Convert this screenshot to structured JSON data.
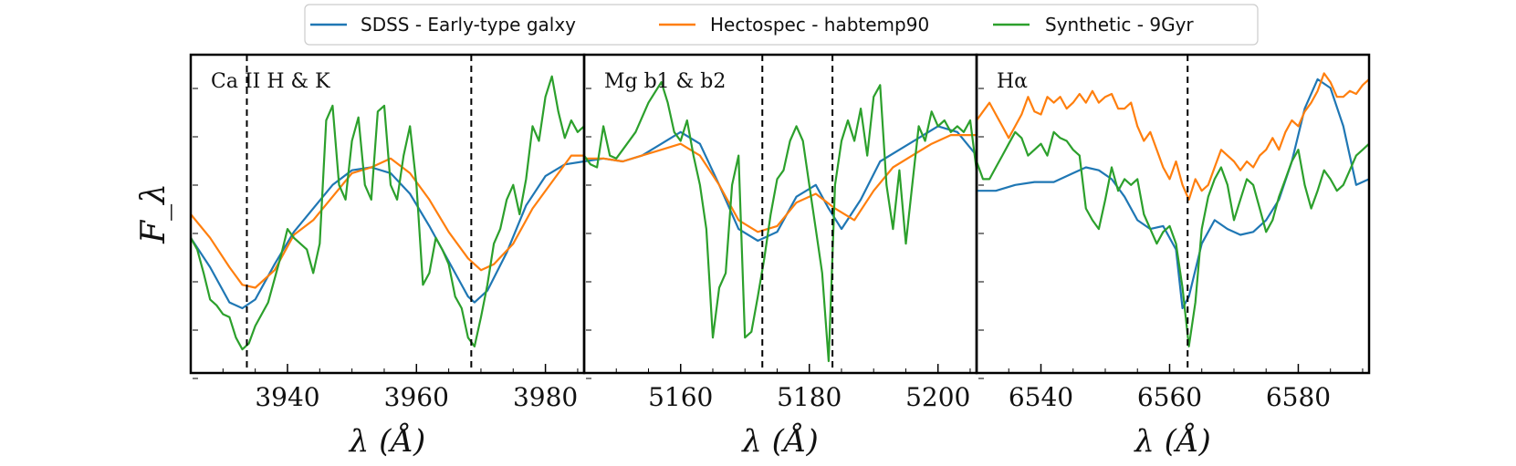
{
  "chart_data": {
    "type": "line",
    "ylabel": "F_λ",
    "xlabel": "λ (Å)",
    "legend": {
      "placement": "top-center",
      "entries": [
        {
          "name": "SDSS - Early-type galxy",
          "color": "#1f77b4"
        },
        {
          "name": "Hectospec - habtemp90",
          "color": "#ff7f0e"
        },
        {
          "name": "Synthetic - 9Gyr",
          "color": "#2ca02c"
        }
      ]
    },
    "panels": [
      {
        "label": "Ca II H & K",
        "xlim": [
          3925,
          3986
        ],
        "ylim": [
          0,
          1
        ],
        "xticks": [
          3940,
          3960,
          3980
        ],
        "xtick_labels": [
          "3940",
          "3960",
          "3980"
        ],
        "vlines": [
          3933.7,
          3968.5
        ],
        "series": [
          {
            "name": "SDSS - Early-type galxy",
            "x": [
              3925,
              3928,
              3931,
              3933,
              3935,
              3938,
              3941,
              3944,
              3947,
              3950,
              3953,
              3956,
              3959,
              3962,
              3965,
              3968,
              3969,
              3971,
              3974,
              3977,
              3980,
              3983,
              3986
            ],
            "y": [
              0.42,
              0.32,
              0.2,
              0.18,
              0.21,
              0.33,
              0.44,
              0.52,
              0.6,
              0.65,
              0.66,
              0.64,
              0.57,
              0.46,
              0.34,
              0.22,
              0.2,
              0.24,
              0.37,
              0.53,
              0.63,
              0.67,
              0.68
            ]
          },
          {
            "name": "Hectospec - habtemp90",
            "x": [
              3925,
              3928,
              3931,
              3933,
              3935,
              3938,
              3941,
              3944,
              3947,
              3950,
              3953,
              3956,
              3959,
              3962,
              3965,
              3968,
              3970,
              3972,
              3975,
              3978,
              3981,
              3984,
              3986
            ],
            "y": [
              0.5,
              0.42,
              0.32,
              0.26,
              0.25,
              0.31,
              0.43,
              0.48,
              0.56,
              0.64,
              0.66,
              0.69,
              0.64,
              0.55,
              0.44,
              0.35,
              0.31,
              0.33,
              0.4,
              0.52,
              0.61,
              0.7,
              0.7
            ]
          },
          {
            "name": "Synthetic - 9Gyr",
            "x": [
              3925,
              3926,
              3927,
              3928,
              3929,
              3930,
              3931,
              3932,
              3933,
              3934,
              3935,
              3937,
              3939,
              3940,
              3941,
              3942,
              3943,
              3944,
              3945,
              3946,
              3947,
              3948,
              3949,
              3950,
              3951,
              3952,
              3953,
              3954,
              3955,
              3956,
              3957,
              3958,
              3959,
              3960,
              3961,
              3962,
              3963,
              3964,
              3965,
              3966,
              3967,
              3968,
              3969,
              3970,
              3971,
              3972,
              3973,
              3974,
              3975,
              3976,
              3977,
              3978,
              3979,
              3980,
              3981,
              3982,
              3983,
              3984,
              3985,
              3986
            ],
            "y": [
              0.42,
              0.38,
              0.3,
              0.21,
              0.19,
              0.16,
              0.15,
              0.08,
              0.04,
              0.06,
              0.12,
              0.2,
              0.36,
              0.45,
              0.42,
              0.4,
              0.38,
              0.3,
              0.4,
              0.82,
              0.87,
              0.6,
              0.55,
              0.75,
              0.83,
              0.6,
              0.55,
              0.85,
              0.87,
              0.6,
              0.55,
              0.7,
              0.8,
              0.6,
              0.26,
              0.3,
              0.42,
              0.38,
              0.33,
              0.22,
              0.18,
              0.08,
              0.05,
              0.15,
              0.26,
              0.4,
              0.45,
              0.55,
              0.6,
              0.5,
              0.62,
              0.8,
              0.75,
              0.9,
              0.97,
              0.85,
              0.76,
              0.82,
              0.78,
              0.8
            ]
          }
        ]
      },
      {
        "label": "Mg b1 & b2",
        "xlim": [
          5145,
          5206
        ],
        "ylim": [
          0,
          1
        ],
        "xticks": [
          5160,
          5180,
          5200
        ],
        "xtick_labels": [
          "5160",
          "5180",
          "5200"
        ],
        "vlines": [
          5172.7,
          5183.6
        ],
        "series": [
          {
            "name": "SDSS - Early-type galxy",
            "x": [
              5145,
              5148,
              5151,
              5154,
              5157,
              5160,
              5163,
              5166,
              5169,
              5172,
              5175,
              5178,
              5181,
              5183,
              5185,
              5188,
              5191,
              5194,
              5197,
              5200,
              5203,
              5206
            ],
            "y": [
              0.68,
              0.69,
              0.68,
              0.7,
              0.74,
              0.78,
              0.74,
              0.6,
              0.45,
              0.41,
              0.44,
              0.56,
              0.6,
              0.52,
              0.45,
              0.55,
              0.68,
              0.72,
              0.76,
              0.8,
              0.78,
              0.7
            ]
          },
          {
            "name": "Hectospec - habtemp90",
            "x": [
              5145,
              5148,
              5151,
              5154,
              5157,
              5160,
              5163,
              5166,
              5169,
              5172,
              5175,
              5178,
              5181,
              5184,
              5187,
              5190,
              5193,
              5196,
              5199,
              5202,
              5206
            ],
            "y": [
              0.69,
              0.69,
              0.68,
              0.7,
              0.72,
              0.74,
              0.7,
              0.6,
              0.48,
              0.44,
              0.46,
              0.54,
              0.57,
              0.52,
              0.48,
              0.58,
              0.66,
              0.7,
              0.74,
              0.77,
              0.77
            ]
          },
          {
            "name": "Synthetic - 9Gyr",
            "x": [
              5145,
              5146,
              5147,
              5148,
              5149,
              5150,
              5151,
              5153,
              5155,
              5157,
              5158,
              5159,
              5160,
              5161,
              5162,
              5163,
              5164,
              5165,
              5166,
              5167,
              5168,
              5169,
              5170,
              5171,
              5172,
              5173,
              5174,
              5175,
              5176,
              5177,
              5178,
              5179,
              5180,
              5181,
              5182,
              5183,
              5184,
              5185,
              5186,
              5187,
              5188,
              5189,
              5190,
              5191,
              5192,
              5193,
              5194,
              5195,
              5196,
              5197,
              5198,
              5199,
              5200,
              5201,
              5202,
              5203,
              5204,
              5205,
              5206
            ],
            "y": [
              0.7,
              0.67,
              0.66,
              0.8,
              0.7,
              0.69,
              0.72,
              0.78,
              0.88,
              0.95,
              0.88,
              0.78,
              0.75,
              0.82,
              0.7,
              0.6,
              0.45,
              0.08,
              0.25,
              0.3,
              0.6,
              0.7,
              0.08,
              0.1,
              0.22,
              0.35,
              0.5,
              0.62,
              0.65,
              0.75,
              0.8,
              0.75,
              0.6,
              0.45,
              0.3,
              0.0,
              0.6,
              0.75,
              0.82,
              0.75,
              0.86,
              0.7,
              0.9,
              0.94,
              0.6,
              0.45,
              0.65,
              0.4,
              0.6,
              0.8,
              0.75,
              0.85,
              0.8,
              0.82,
              0.78,
              0.8,
              0.78,
              0.82,
              0.65
            ]
          }
        ]
      },
      {
        "label": "Hα",
        "xlim": [
          6530,
          6591
        ],
        "ylim": [
          0,
          1
        ],
        "xticks": [
          6540,
          6560,
          6580
        ],
        "xtick_labels": [
          "6540",
          "6560",
          "6580"
        ],
        "vlines": [
          6562.8
        ],
        "series": [
          {
            "name": "SDSS - Early-type galxy",
            "x": [
              6530,
              6533,
              6536,
              6539,
              6542,
              6545,
              6547,
              6549,
              6551,
              6553,
              6555,
              6557,
              6559,
              6561,
              6562,
              6563,
              6565,
              6567,
              6569,
              6571,
              6573,
              6575,
              6577,
              6579,
              6581,
              6583,
              6585,
              6587,
              6589,
              6591
            ],
            "y": [
              0.58,
              0.58,
              0.6,
              0.61,
              0.61,
              0.64,
              0.66,
              0.65,
              0.62,
              0.56,
              0.48,
              0.45,
              0.46,
              0.38,
              0.18,
              0.22,
              0.4,
              0.48,
              0.45,
              0.43,
              0.44,
              0.48,
              0.55,
              0.68,
              0.86,
              0.96,
              0.93,
              0.8,
              0.6,
              0.62
            ]
          },
          {
            "name": "Hectospec - habtemp90",
            "x": [
              6530,
              6531,
              6532,
              6533,
              6534,
              6535,
              6536,
              6537,
              6538,
              6539,
              6540,
              6541,
              6542,
              6543,
              6544,
              6545,
              6546,
              6547,
              6548,
              6549,
              6550,
              6551,
              6552,
              6553,
              6554,
              6555,
              6556,
              6557,
              6558,
              6559,
              6560,
              6561,
              6562,
              6563,
              6564,
              6565,
              6566,
              6567,
              6568,
              6569,
              6570,
              6571,
              6572,
              6573,
              6574,
              6575,
              6576,
              6577,
              6578,
              6579,
              6580,
              6581,
              6582,
              6583,
              6584,
              6585,
              6586,
              6587,
              6588,
              6589,
              6590,
              6591
            ],
            "y": [
              0.82,
              0.85,
              0.88,
              0.84,
              0.8,
              0.76,
              0.8,
              0.84,
              0.9,
              0.85,
              0.84,
              0.9,
              0.88,
              0.9,
              0.86,
              0.88,
              0.91,
              0.88,
              0.92,
              0.88,
              0.9,
              0.91,
              0.86,
              0.86,
              0.88,
              0.8,
              0.75,
              0.78,
              0.72,
              0.66,
              0.62,
              0.68,
              0.6,
              0.55,
              0.62,
              0.58,
              0.6,
              0.66,
              0.72,
              0.7,
              0.68,
              0.65,
              0.68,
              0.66,
              0.7,
              0.72,
              0.76,
              0.72,
              0.78,
              0.82,
              0.8,
              0.85,
              0.88,
              0.92,
              0.98,
              0.95,
              0.9,
              0.9,
              0.92,
              0.91,
              0.94,
              0.96
            ]
          },
          {
            "name": "Synthetic - 9Gyr",
            "x": [
              6530,
              6531,
              6532,
              6533,
              6534,
              6535,
              6536,
              6537,
              6538,
              6539,
              6540,
              6541,
              6542,
              6543,
              6544,
              6545,
              6546,
              6547,
              6548,
              6549,
              6550,
              6551,
              6552,
              6553,
              6554,
              6555,
              6556,
              6557,
              6558,
              6559,
              6560,
              6561,
              6562,
              6563,
              6564,
              6565,
              6566,
              6567,
              6568,
              6569,
              6570,
              6571,
              6572,
              6573,
              6574,
              6575,
              6576,
              6577,
              6578,
              6579,
              6580,
              6581,
              6582,
              6583,
              6584,
              6585,
              6586,
              6587,
              6588,
              6589,
              6590,
              6591
            ],
            "y": [
              0.68,
              0.62,
              0.62,
              0.66,
              0.7,
              0.74,
              0.78,
              0.76,
              0.7,
              0.72,
              0.74,
              0.7,
              0.78,
              0.76,
              0.75,
              0.72,
              0.7,
              0.52,
              0.48,
              0.45,
              0.55,
              0.66,
              0.58,
              0.62,
              0.6,
              0.62,
              0.5,
              0.45,
              0.4,
              0.44,
              0.46,
              0.4,
              0.25,
              0.05,
              0.2,
              0.45,
              0.56,
              0.62,
              0.66,
              0.6,
              0.48,
              0.55,
              0.62,
              0.6,
              0.52,
              0.44,
              0.48,
              0.56,
              0.62,
              0.68,
              0.72,
              0.6,
              0.52,
              0.58,
              0.65,
              0.62,
              0.58,
              0.6,
              0.65,
              0.7,
              0.72,
              0.74
            ]
          }
        ]
      }
    ]
  }
}
